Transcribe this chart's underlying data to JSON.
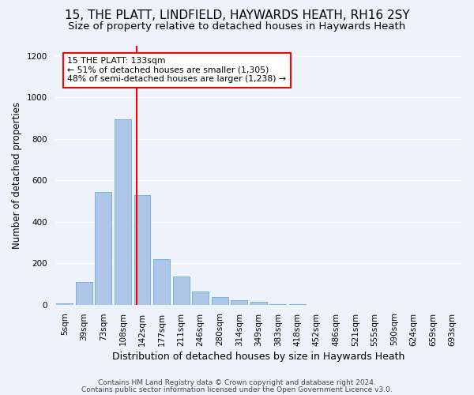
{
  "title1": "15, THE PLATT, LINDFIELD, HAYWARDS HEATH, RH16 2SY",
  "title2": "Size of property relative to detached houses in Haywards Heath",
  "xlabel": "Distribution of detached houses by size in Haywards Heath",
  "ylabel": "Number of detached properties",
  "bar_labels": [
    "5sqm",
    "39sqm",
    "73sqm",
    "108sqm",
    "142sqm",
    "177sqm",
    "211sqm",
    "246sqm",
    "280sqm",
    "314sqm",
    "349sqm",
    "383sqm",
    "418sqm",
    "452sqm",
    "486sqm",
    "521sqm",
    "555sqm",
    "590sqm",
    "624sqm",
    "659sqm",
    "693sqm"
  ],
  "bar_values": [
    8,
    110,
    545,
    895,
    530,
    220,
    135,
    62,
    38,
    22,
    15,
    4,
    2,
    0,
    0,
    0,
    0,
    0,
    0,
    0,
    0
  ],
  "bar_color": "#aec6e8",
  "bar_edge_color": "#6aaed6",
  "property_line_x": 3.72,
  "annotation_line1": "15 THE PLATT: 133sqm",
  "annotation_line2": "← 51% of detached houses are smaller (1,305)",
  "annotation_line3": "48% of semi-detached houses are larger (1,238) →",
  "footer1": "Contains HM Land Registry data © Crown copyright and database right 2024.",
  "footer2": "Contains public sector information licensed under the Open Government Licence v3.0.",
  "ylim": [
    0,
    1250
  ],
  "yticks": [
    0,
    200,
    400,
    600,
    800,
    1000,
    1200
  ],
  "bg_color": "#eef2fa",
  "grid_color": "#ffffff",
  "title1_fontsize": 11,
  "title2_fontsize": 9.5,
  "xlabel_fontsize": 9,
  "ylabel_fontsize": 8.5,
  "tick_fontsize": 7.5,
  "footer_fontsize": 6.5
}
